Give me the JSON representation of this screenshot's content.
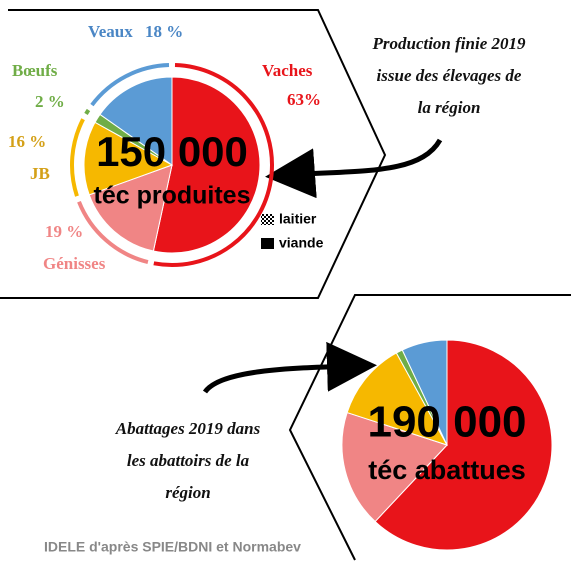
{
  "chart_data": [
    {
      "type": "pie",
      "categories": [
        "Vaches",
        "Génisses",
        "JB",
        "Bœufs",
        "Veaux"
      ],
      "values": [
        63,
        19,
        16,
        2,
        18
      ],
      "value_labels": [
        "63%",
        "19 %",
        "16 %",
        "2 %",
        "18 %"
      ],
      "colors": [
        "#e8141a",
        "#f08585",
        "#f6b800",
        "#70ad47",
        "#5b9bd5"
      ],
      "center_value": "150 000",
      "center_label": "téc produites",
      "legend": [
        "laitier",
        "viande"
      ],
      "annotation": [
        "Production finie 2019",
        "issue des élevages de",
        "la région"
      ]
    },
    {
      "type": "pie",
      "categories": [
        null,
        null,
        null,
        null,
        null
      ],
      "values": [
        62,
        18,
        12,
        1,
        7
      ],
      "colors": [
        "#e8141a",
        "#f08585",
        "#f6b800",
        "#70ad47",
        "#5b9bd5"
      ],
      "center_value": "190 000",
      "center_label": "téc abattues",
      "annotation": [
        "Abattages 2019 dans",
        "les abattoirs de la",
        "région"
      ]
    }
  ],
  "source": "IDELE d'après SPIE/BDNI et Normabev"
}
